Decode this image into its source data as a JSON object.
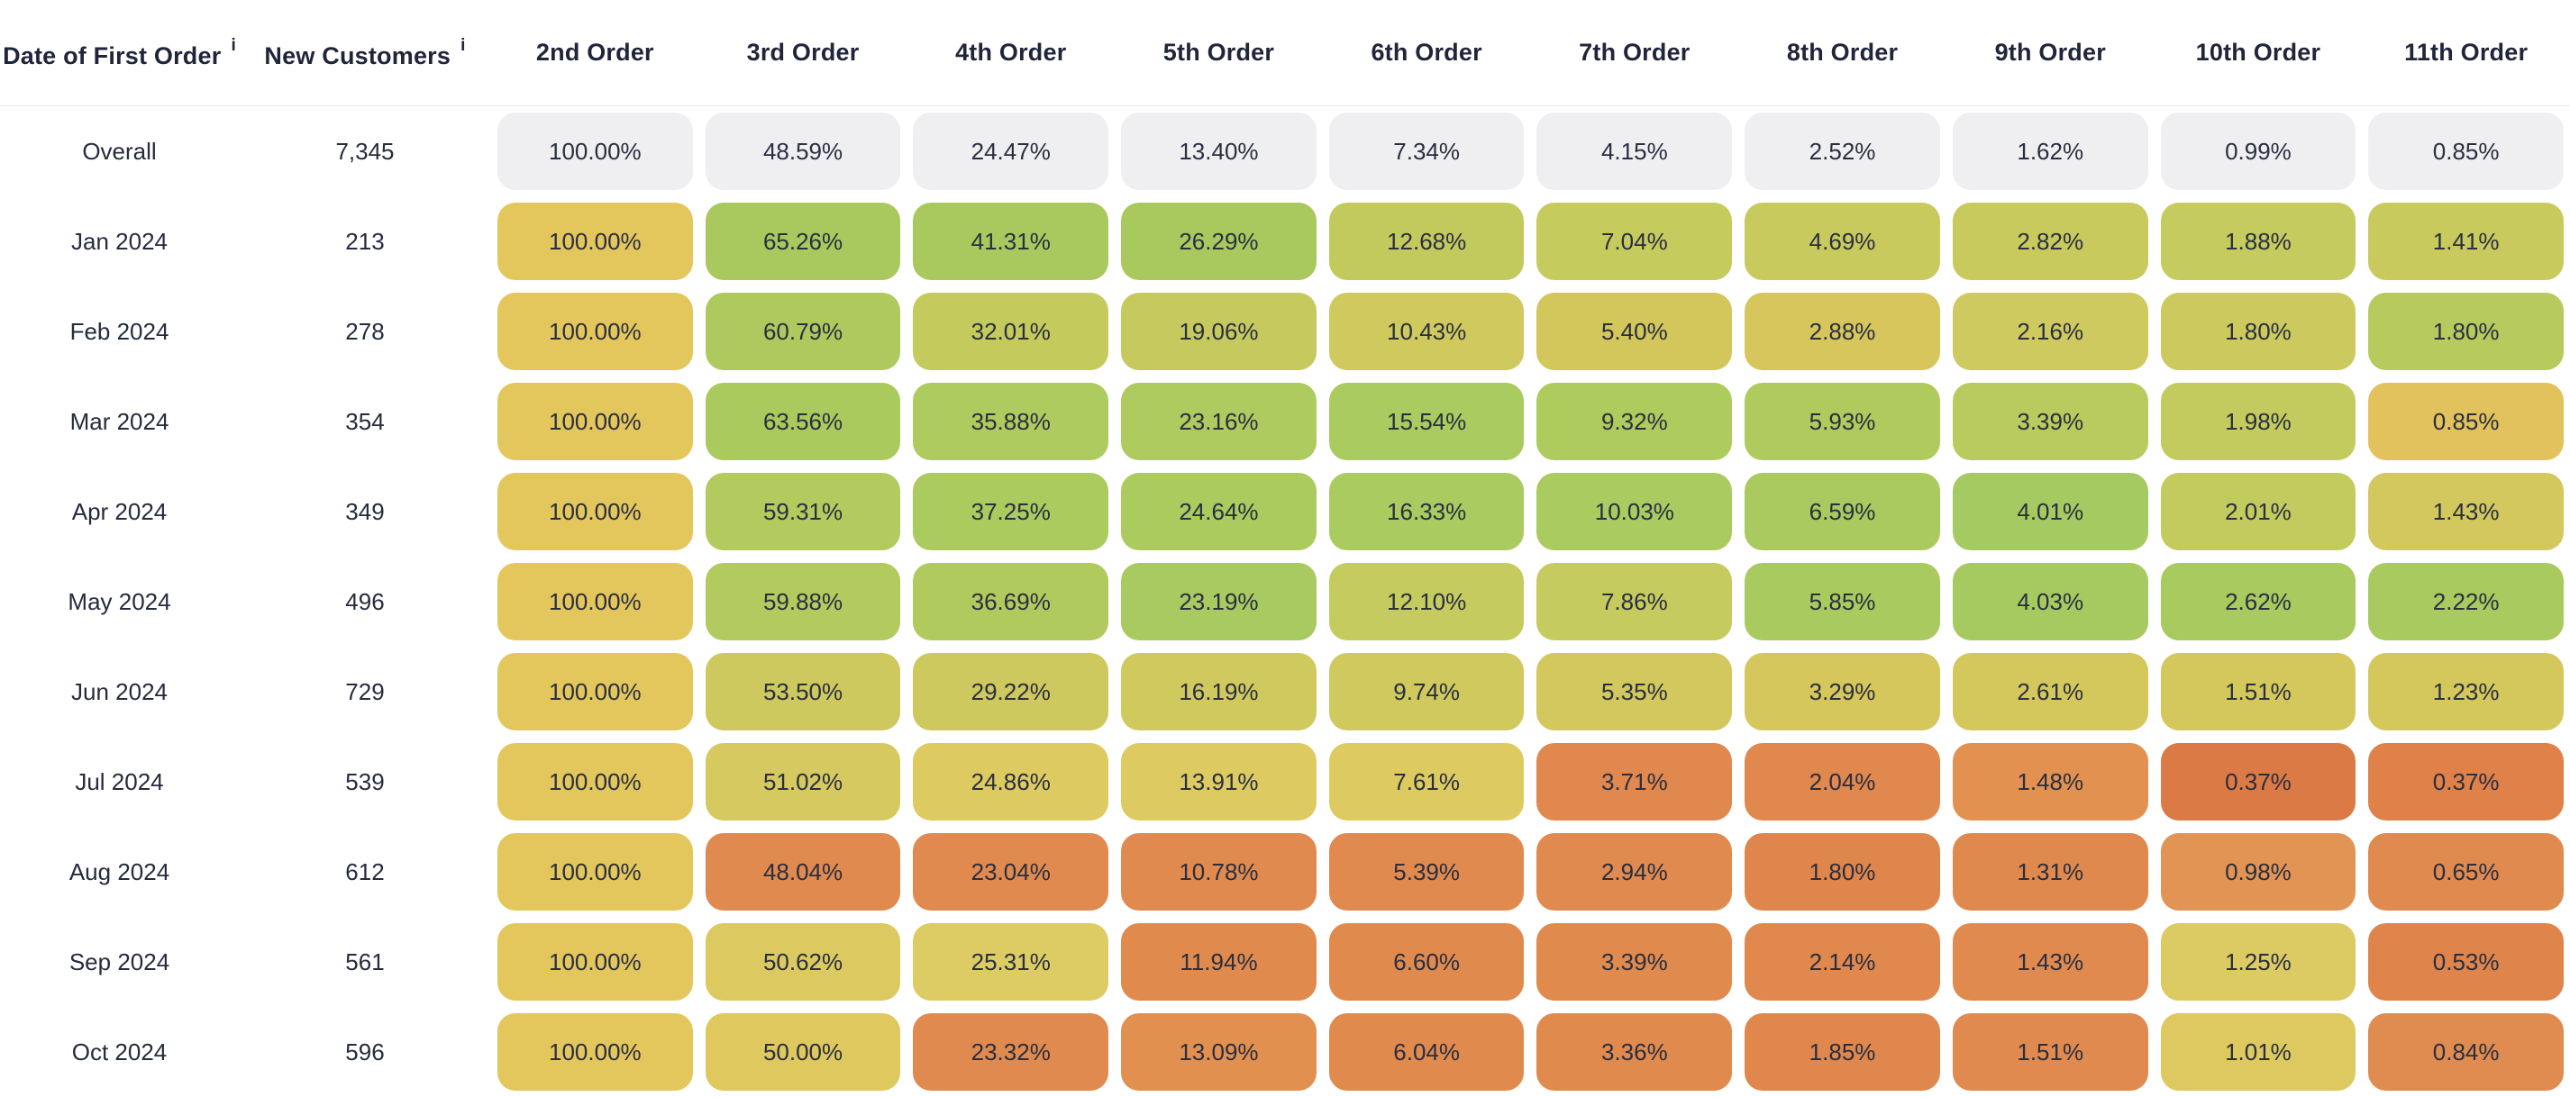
{
  "colors": {
    "background": "#ffffff",
    "header_text": "#20253a",
    "body_text": "#262b3d",
    "divider": "#e8e8ea",
    "overall_cell": "#efeff2",
    "accent_green": "#a9c95e",
    "accent_yellow": "#ddca60",
    "accent_mustard": "#e3c75d",
    "accent_orange": "#e0884e"
  },
  "table": {
    "columns": [
      {
        "label": "Date of First Order",
        "info": true
      },
      {
        "label": "New Customers",
        "info": true
      },
      {
        "label": "2nd Order",
        "info": false
      },
      {
        "label": "3rd Order",
        "info": false
      },
      {
        "label": "4th Order",
        "info": false
      },
      {
        "label": "5th Order",
        "info": false
      },
      {
        "label": "6th Order",
        "info": false
      },
      {
        "label": "7th Order",
        "info": false
      },
      {
        "label": "8th Order",
        "info": false
      },
      {
        "label": "9th Order",
        "info": false
      },
      {
        "label": "10th Order",
        "info": false
      },
      {
        "label": "11th Order",
        "info": false
      }
    ],
    "rows": [
      {
        "label": "Overall",
        "new_customers": "7,345",
        "cells": [
          {
            "v": "100.00%",
            "c": "#efeff2"
          },
          {
            "v": "48.59%",
            "c": "#efeff2"
          },
          {
            "v": "24.47%",
            "c": "#efeff2"
          },
          {
            "v": "13.40%",
            "c": "#efeff2"
          },
          {
            "v": "7.34%",
            "c": "#efeff2"
          },
          {
            "v": "4.15%",
            "c": "#efeff2"
          },
          {
            "v": "2.52%",
            "c": "#efeff2"
          },
          {
            "v": "1.62%",
            "c": "#efeff2"
          },
          {
            "v": "0.99%",
            "c": "#efeff2"
          },
          {
            "v": "0.85%",
            "c": "#efeff2"
          }
        ]
      },
      {
        "label": "Jan 2024",
        "new_customers": "213",
        "cells": [
          {
            "v": "100.00%",
            "c": "#e3c75d"
          },
          {
            "v": "65.26%",
            "c": "#a9c95e"
          },
          {
            "v": "41.31%",
            "c": "#a9c95e"
          },
          {
            "v": "26.29%",
            "c": "#a9c95e"
          },
          {
            "v": "12.68%",
            "c": "#c3ca5d"
          },
          {
            "v": "7.04%",
            "c": "#c6cb5e"
          },
          {
            "v": "4.69%",
            "c": "#c8ca5e"
          },
          {
            "v": "2.82%",
            "c": "#c8ca5e"
          },
          {
            "v": "1.88%",
            "c": "#c5cb5e"
          },
          {
            "v": "1.41%",
            "c": "#c8ca5e"
          }
        ]
      },
      {
        "label": "Feb 2024",
        "new_customers": "278",
        "cells": [
          {
            "v": "100.00%",
            "c": "#e3c75d"
          },
          {
            "v": "60.79%",
            "c": "#aeca5e"
          },
          {
            "v": "32.01%",
            "c": "#c4ca5c"
          },
          {
            "v": "19.06%",
            "c": "#c6ca5e"
          },
          {
            "v": "10.43%",
            "c": "#cfc95e"
          },
          {
            "v": "5.40%",
            "c": "#d3c75c"
          },
          {
            "v": "2.88%",
            "c": "#d7c65c"
          },
          {
            "v": "2.16%",
            "c": "#cfca60"
          },
          {
            "v": "1.80%",
            "c": "#ccca5e"
          },
          {
            "v": "1.80%",
            "c": "#b7ca5e"
          }
        ]
      },
      {
        "label": "Mar 2024",
        "new_customers": "354",
        "cells": [
          {
            "v": "100.00%",
            "c": "#e3c75d"
          },
          {
            "v": "63.56%",
            "c": "#aaca5e"
          },
          {
            "v": "35.88%",
            "c": "#adcb5f"
          },
          {
            "v": "23.16%",
            "c": "#adcb5f"
          },
          {
            "v": "15.54%",
            "c": "#aacb60"
          },
          {
            "v": "9.32%",
            "c": "#aecb5e"
          },
          {
            "v": "5.93%",
            "c": "#afcb5e"
          },
          {
            "v": "3.39%",
            "c": "#b9cb5e"
          },
          {
            "v": "1.98%",
            "c": "#c4cb5e"
          },
          {
            "v": "0.85%",
            "c": "#e2c25c"
          }
        ]
      },
      {
        "label": "Apr 2024",
        "new_customers": "349",
        "cells": [
          {
            "v": "100.00%",
            "c": "#e3c75d"
          },
          {
            "v": "59.31%",
            "c": "#b2ca5e"
          },
          {
            "v": "37.25%",
            "c": "#abcb5f"
          },
          {
            "v": "24.64%",
            "c": "#abcb5f"
          },
          {
            "v": "16.33%",
            "c": "#a9cb60"
          },
          {
            "v": "10.03%",
            "c": "#a9cb60"
          },
          {
            "v": "6.59%",
            "c": "#aaca5f"
          },
          {
            "v": "4.01%",
            "c": "#a5ca62"
          },
          {
            "v": "2.01%",
            "c": "#c3cb5f"
          },
          {
            "v": "1.43%",
            "c": "#d2c85e"
          }
        ]
      },
      {
        "label": "May 2024",
        "new_customers": "496",
        "cells": [
          {
            "v": "100.00%",
            "c": "#e3c75d"
          },
          {
            "v": "59.88%",
            "c": "#b2ca5e"
          },
          {
            "v": "36.69%",
            "c": "#b0ca5e"
          },
          {
            "v": "23.19%",
            "c": "#a9ca60"
          },
          {
            "v": "12.10%",
            "c": "#c6cb5f"
          },
          {
            "v": "7.86%",
            "c": "#c6cb5f"
          },
          {
            "v": "5.85%",
            "c": "#a9ca5f"
          },
          {
            "v": "4.03%",
            "c": "#a7ca60"
          },
          {
            "v": "2.62%",
            "c": "#a8ca5f"
          },
          {
            "v": "2.22%",
            "c": "#a8ca5f"
          }
        ]
      },
      {
        "label": "Jun 2024",
        "new_customers": "729",
        "cells": [
          {
            "v": "100.00%",
            "c": "#e3c75d"
          },
          {
            "v": "53.50%",
            "c": "#cdc95e"
          },
          {
            "v": "29.22%",
            "c": "#cdc95e"
          },
          {
            "v": "16.19%",
            "c": "#d0c95e"
          },
          {
            "v": "9.74%",
            "c": "#cfc95e"
          },
          {
            "v": "5.35%",
            "c": "#d2c85d"
          },
          {
            "v": "3.29%",
            "c": "#d6c75c"
          },
          {
            "v": "2.61%",
            "c": "#d4c85d"
          },
          {
            "v": "1.51%",
            "c": "#d4c85d"
          },
          {
            "v": "1.23%",
            "c": "#d4c85d"
          }
        ]
      },
      {
        "label": "Jul 2024",
        "new_customers": "539",
        "cells": [
          {
            "v": "100.00%",
            "c": "#e3c75d"
          },
          {
            "v": "51.02%",
            "c": "#d5c95f"
          },
          {
            "v": "24.86%",
            "c": "#ddcb62"
          },
          {
            "v": "13.91%",
            "c": "#ddcb62"
          },
          {
            "v": "7.61%",
            "c": "#ddcb62"
          },
          {
            "v": "3.71%",
            "c": "#e0884e"
          },
          {
            "v": "2.04%",
            "c": "#e0884e"
          },
          {
            "v": "1.48%",
            "c": "#e29150"
          },
          {
            "v": "0.37%",
            "c": "#dc7a45"
          },
          {
            "v": "0.37%",
            "c": "#df8149"
          }
        ]
      },
      {
        "label": "Aug 2024",
        "new_customers": "612",
        "cells": [
          {
            "v": "100.00%",
            "c": "#e3c75d"
          },
          {
            "v": "48.04%",
            "c": "#e08a4f"
          },
          {
            "v": "23.04%",
            "c": "#e08a4f"
          },
          {
            "v": "10.78%",
            "c": "#e08a4f"
          },
          {
            "v": "5.39%",
            "c": "#e08a4f"
          },
          {
            "v": "2.94%",
            "c": "#e08a4f"
          },
          {
            "v": "1.80%",
            "c": "#df864c"
          },
          {
            "v": "1.31%",
            "c": "#e0894e"
          },
          {
            "v": "0.98%",
            "c": "#e29454"
          },
          {
            "v": "0.65%",
            "c": "#e08a50"
          }
        ]
      },
      {
        "label": "Sep 2024",
        "new_customers": "561",
        "cells": [
          {
            "v": "100.00%",
            "c": "#e3c75d"
          },
          {
            "v": "50.62%",
            "c": "#dcca60"
          },
          {
            "v": "25.31%",
            "c": "#ddcc63"
          },
          {
            "v": "11.94%",
            "c": "#e08a4e"
          },
          {
            "v": "6.60%",
            "c": "#e08a4e"
          },
          {
            "v": "3.39%",
            "c": "#e08a4e"
          },
          {
            "v": "2.14%",
            "c": "#e0884d"
          },
          {
            "v": "1.43%",
            "c": "#e08a4f"
          },
          {
            "v": "1.25%",
            "c": "#dcca62"
          },
          {
            "v": "0.53%",
            "c": "#df854b"
          }
        ]
      },
      {
        "label": "Oct 2024",
        "new_customers": "596",
        "cells": [
          {
            "v": "100.00%",
            "c": "#e3c75d"
          },
          {
            "v": "50.00%",
            "c": "#dfc95f"
          },
          {
            "v": "23.32%",
            "c": "#e08a4f"
          },
          {
            "v": "13.09%",
            "c": "#e29050"
          },
          {
            "v": "6.04%",
            "c": "#e08a4e"
          },
          {
            "v": "3.36%",
            "c": "#e08a4e"
          },
          {
            "v": "1.85%",
            "c": "#df874d"
          },
          {
            "v": "1.51%",
            "c": "#e08a4f"
          },
          {
            "v": "1.01%",
            "c": "#ddc95f"
          },
          {
            "v": "0.84%",
            "c": "#e08b50"
          }
        ]
      }
    ]
  },
  "chart_data": {
    "type": "heatmap",
    "title": "Repeat purchase rate cohort table",
    "row_label_column": "Date of First Order",
    "count_column": "New Customers",
    "columns": [
      "2nd Order",
      "3rd Order",
      "4th Order",
      "5th Order",
      "6th Order",
      "7th Order",
      "8th Order",
      "9th Order",
      "10th Order",
      "11th Order"
    ],
    "rows": [
      "Overall",
      "Jan 2024",
      "Feb 2024",
      "Mar 2024",
      "Apr 2024",
      "May 2024",
      "Jun 2024",
      "Jul 2024",
      "Aug 2024",
      "Sep 2024",
      "Oct 2024"
    ],
    "new_customers": [
      7345,
      213,
      278,
      354,
      349,
      496,
      729,
      539,
      612,
      561,
      596
    ],
    "values_percent": [
      [
        100.0,
        48.59,
        24.47,
        13.4,
        7.34,
        4.15,
        2.52,
        1.62,
        0.99,
        0.85
      ],
      [
        100.0,
        65.26,
        41.31,
        26.29,
        12.68,
        7.04,
        4.69,
        2.82,
        1.88,
        1.41
      ],
      [
        100.0,
        60.79,
        32.01,
        19.06,
        10.43,
        5.4,
        2.88,
        2.16,
        1.8,
        1.8
      ],
      [
        100.0,
        63.56,
        35.88,
        23.16,
        15.54,
        9.32,
        5.93,
        3.39,
        1.98,
        0.85
      ],
      [
        100.0,
        59.31,
        37.25,
        24.64,
        16.33,
        10.03,
        6.59,
        4.01,
        2.01,
        1.43
      ],
      [
        100.0,
        59.88,
        36.69,
        23.19,
        12.1,
        7.86,
        5.85,
        4.03,
        2.62,
        2.22
      ],
      [
        100.0,
        53.5,
        29.22,
        16.19,
        9.74,
        5.35,
        3.29,
        2.61,
        1.51,
        1.23
      ],
      [
        100.0,
        51.02,
        24.86,
        13.91,
        7.61,
        3.71,
        2.04,
        1.48,
        0.37,
        0.37
      ],
      [
        100.0,
        48.04,
        23.04,
        10.78,
        5.39,
        2.94,
        1.8,
        1.31,
        0.98,
        0.65
      ],
      [
        100.0,
        50.62,
        25.31,
        11.94,
        6.6,
        3.39,
        2.14,
        1.43,
        1.25,
        0.53
      ],
      [
        100.0,
        50.0,
        23.32,
        13.09,
        6.04,
        3.36,
        1.85,
        1.51,
        1.01,
        0.84
      ]
    ],
    "legend_position": "none",
    "grid": false,
    "color_coding": "green = above-average retention, yellow = near average, orange = below average; Overall row shown in neutral gray"
  }
}
